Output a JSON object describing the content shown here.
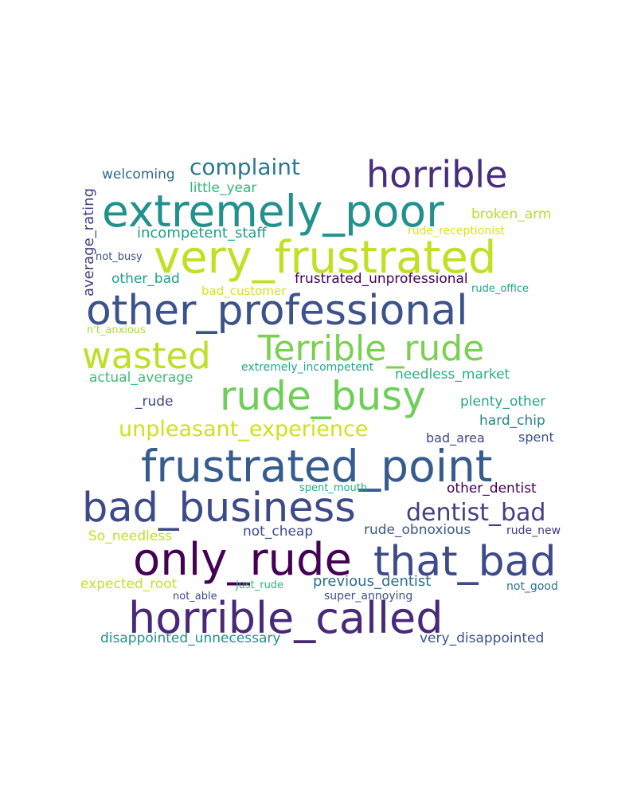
{
  "words": [
    {
      "text": "horrible",
      "color": "#472d7b"
    },
    {
      "text": "complaint",
      "color": "#2a788e"
    },
    {
      "text": "welcoming",
      "color": "#31688e"
    },
    {
      "text": "little_year",
      "color": "#35b779"
    },
    {
      "text": "extremely_poor",
      "color": "#21918c"
    },
    {
      "text": "broken_arm",
      "color": "#b5de2b"
    },
    {
      "text": "incompetent_staff",
      "color": "#1f9e89"
    },
    {
      "text": "rude_receptionist",
      "color": "#dce319"
    },
    {
      "text": "very_frustrated",
      "color": "#c2df23"
    },
    {
      "text": "not_busy",
      "color": "#3e4a89"
    },
    {
      "text": "average_rating",
      "color": "#433e85"
    },
    {
      "text": "other_bad",
      "color": "#1fa088"
    },
    {
      "text": "frustrated_unprofessional",
      "color": "#440154"
    },
    {
      "text": "bad_customer",
      "color": "#d8e219"
    },
    {
      "text": "rude_office",
      "color": "#20a486"
    },
    {
      "text": "other_professional",
      "color": "#3b528b"
    },
    {
      "text": "n't_anxious",
      "color": "#a8db34"
    },
    {
      "text": "wasted",
      "color": "#bddf26"
    },
    {
      "text": "Terrible_rude",
      "color": "#7ad151"
    },
    {
      "text": "extremely_incompetent",
      "color": "#22a785"
    },
    {
      "text": "actual_average",
      "color": "#3dbc74"
    },
    {
      "text": "needless_market",
      "color": "#29af7f"
    },
    {
      "text": "rude_busy",
      "color": "#6ece58"
    },
    {
      "text": "_rude",
      "color": "#414487"
    },
    {
      "text": "plenty_other",
      "color": "#23a983"
    },
    {
      "text": "unpleasant_experience",
      "color": "#d0e11c"
    },
    {
      "text": "hard_chip",
      "color": "#25838e"
    },
    {
      "text": "bad_area",
      "color": "#404688"
    },
    {
      "text": "spent",
      "color": "#3b518b"
    },
    {
      "text": "frustrated_point",
      "color": "#365c8d"
    },
    {
      "text": "spent_mouth",
      "color": "#26ad81"
    },
    {
      "text": "other_dentist",
      "color": "#440154"
    },
    {
      "text": "bad_business",
      "color": "#3e4989"
    },
    {
      "text": "dentist_bad",
      "color": "#423f85"
    },
    {
      "text": "not_cheap",
      "color": "#3e4a89"
    },
    {
      "text": "rude_obnoxious",
      "color": "#38588c"
    },
    {
      "text": "rude_new",
      "color": "#453882"
    },
    {
      "text": "So_needless",
      "color": "#c0df25"
    },
    {
      "text": "only_rude",
      "color": "#440154"
    },
    {
      "text": "that_bad",
      "color": "#3e4a89"
    },
    {
      "text": "expected_root",
      "color": "#c8e020"
    },
    {
      "text": "previous_dentist",
      "color": "#2c718e"
    },
    {
      "text": "not_able",
      "color": "#3f4788"
    },
    {
      "text": "just_rude",
      "color": "#2fb47c"
    },
    {
      "text": "super_annoying",
      "color": "#3b528b"
    },
    {
      "text": "not_good",
      "color": "#2c728e"
    },
    {
      "text": "horrible_called",
      "color": "#482878"
    },
    {
      "text": "disappointed_unnecessary",
      "color": "#21918c"
    },
    {
      "text": "very_disappointed",
      "color": "#3b528b"
    }
  ]
}
